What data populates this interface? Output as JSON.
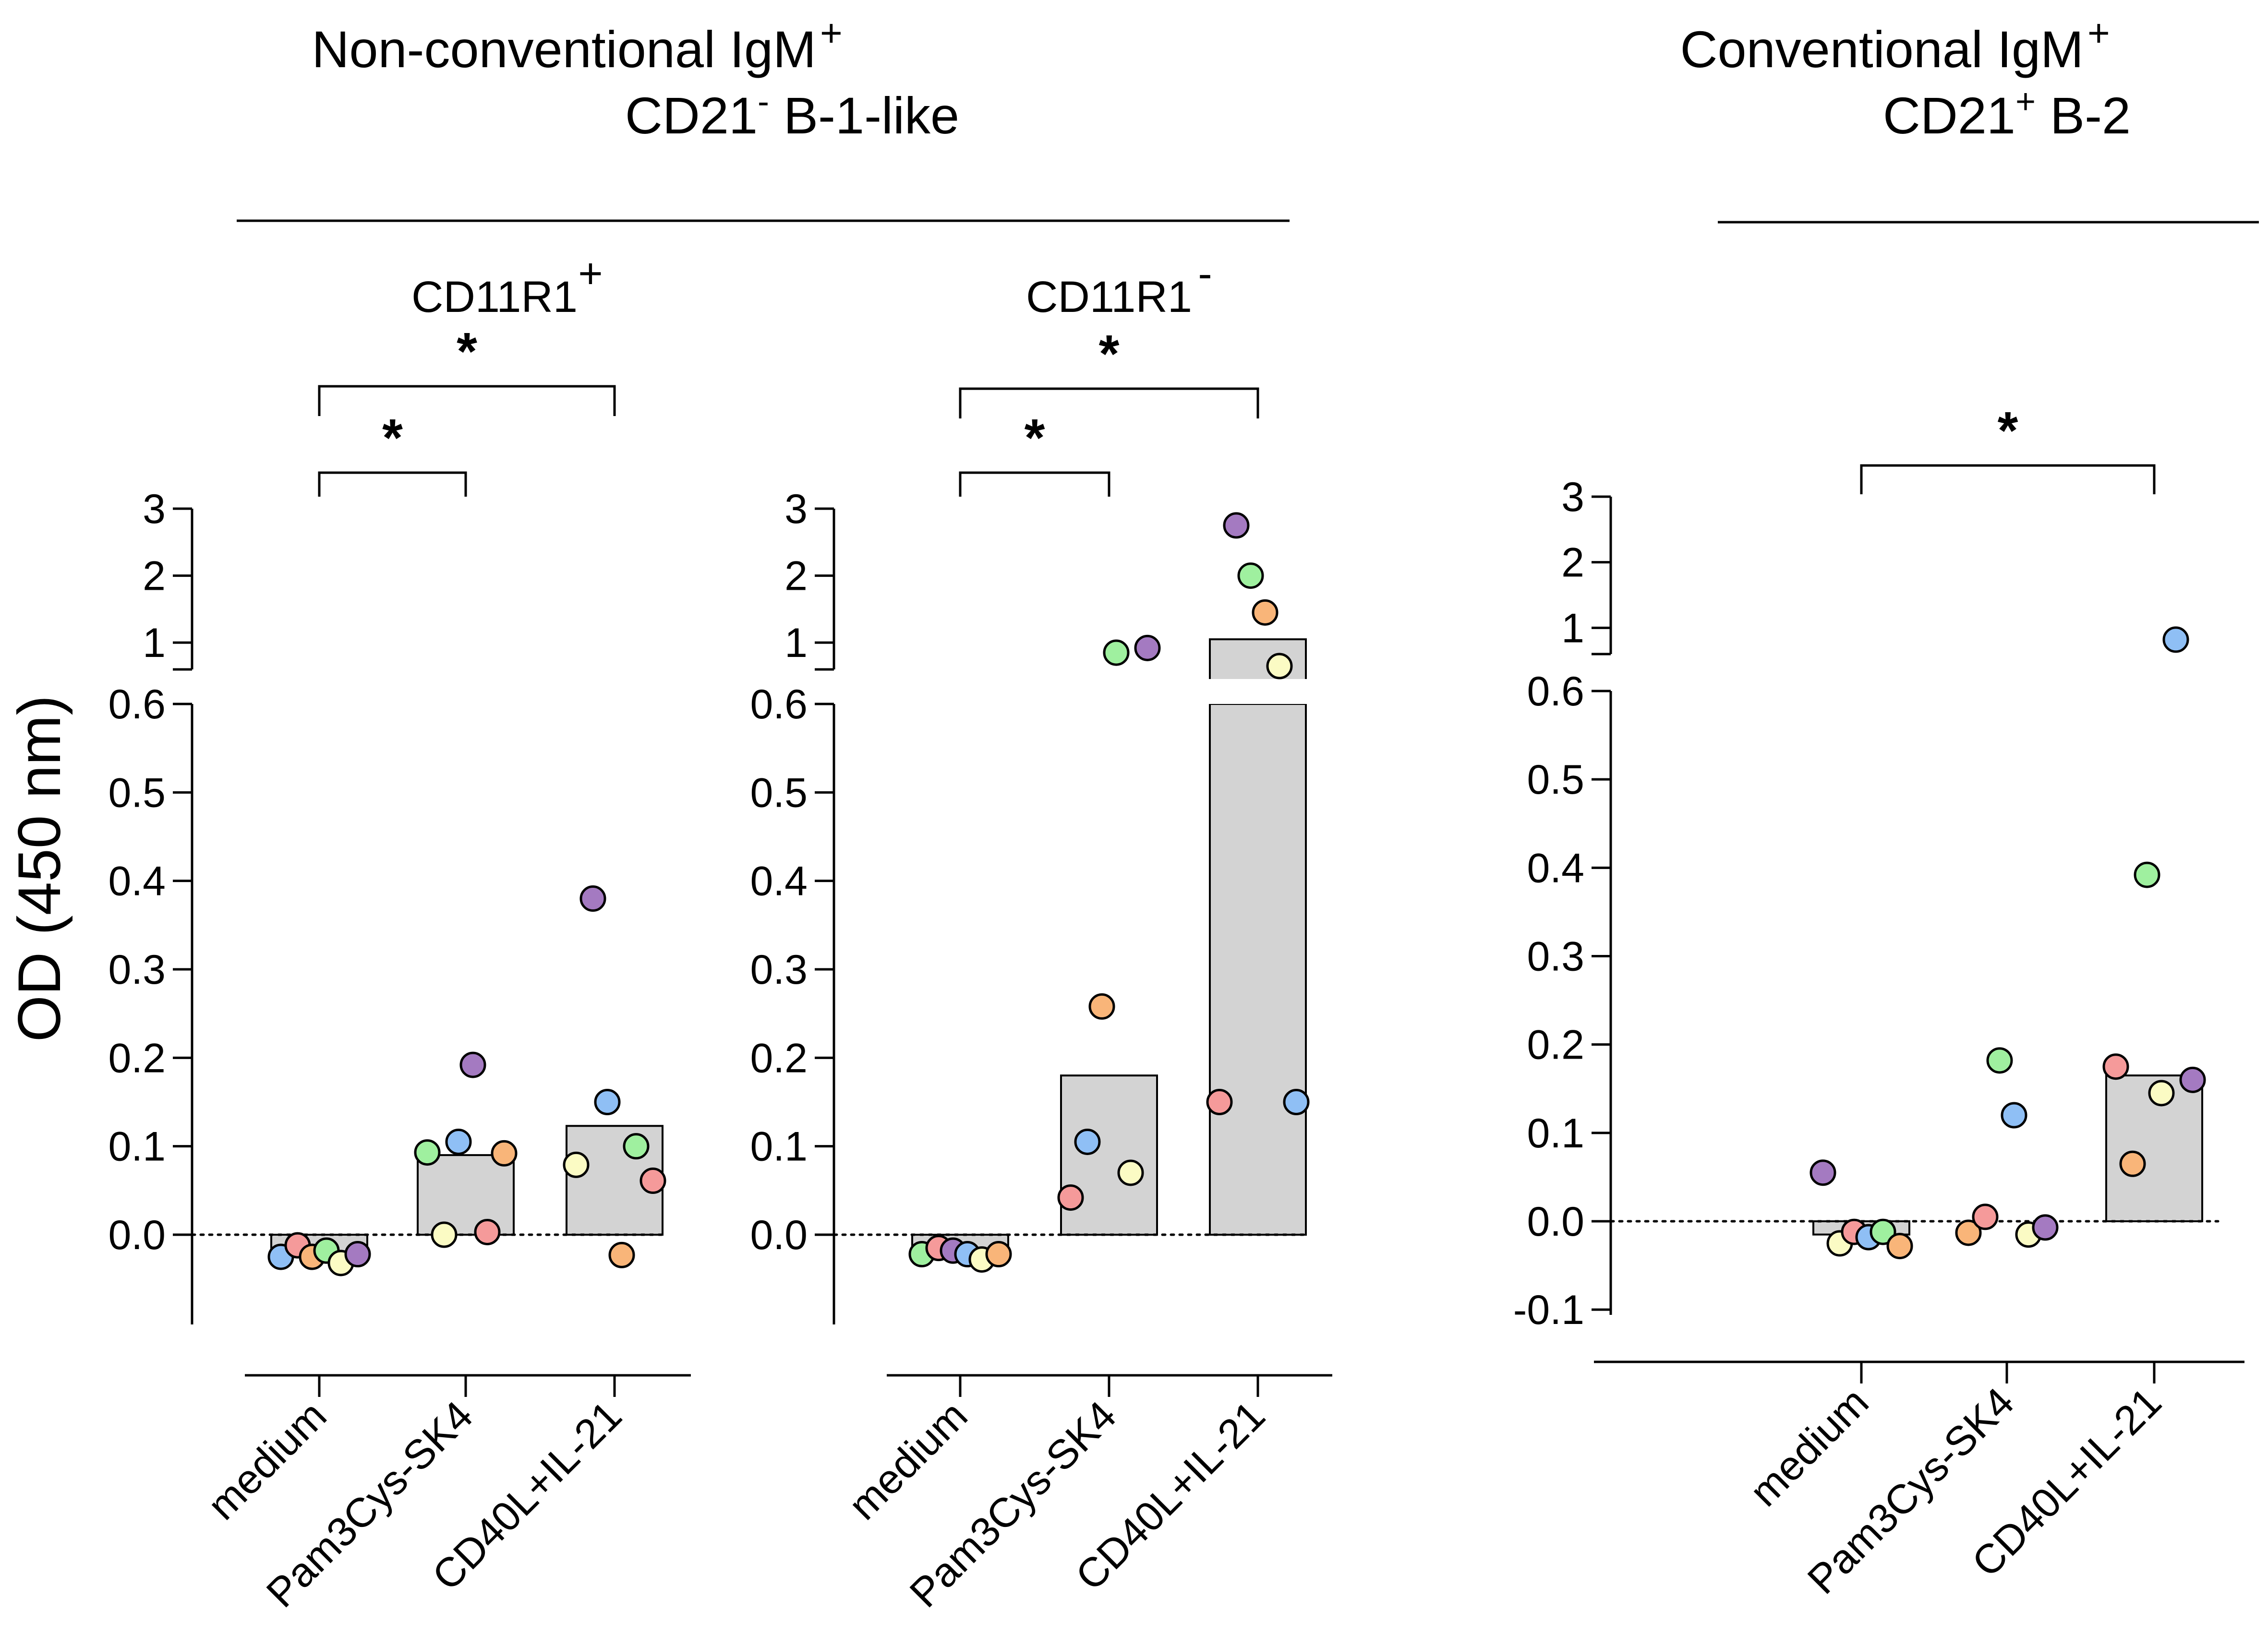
{
  "y_axis_label": "OD (450 nm)",
  "groups": [
    {
      "title_main": "Non-conventional IgM",
      "title_sup": "+",
      "title_line2_pre": "CD21",
      "title_line2_sup": "-",
      "title_line2_post": " B-1-like"
    },
    {
      "title_main": "Conventional IgM",
      "title_sup": "+",
      "title_line2_pre": "CD21",
      "title_line2_sup": "+",
      "title_line2_post": " B-2"
    }
  ],
  "chart_data": [
    {
      "type": "bar",
      "panel_title": "CD11R1",
      "panel_title_sup": "+",
      "categories": [
        "medium",
        "Pam3Cys-SK4",
        "CD40L+IL-21"
      ],
      "means": [
        -0.02,
        0.09,
        0.123
      ],
      "points": [
        [
          {
            "v": -0.025,
            "c": "#8fbff5"
          },
          {
            "v": -0.012,
            "c": "#f59a9a"
          },
          {
            "v": -0.025,
            "c": "#f9b579"
          },
          {
            "v": -0.018,
            "c": "#9ff09f"
          },
          {
            "v": -0.032,
            "c": "#fbfbc4"
          },
          {
            "v": -0.022,
            "c": "#a47ac1"
          }
        ],
        [
          {
            "v": 0.093,
            "c": "#9ff09f"
          },
          {
            "v": 0.0,
            "c": "#fbfbc4"
          },
          {
            "v": 0.105,
            "c": "#8fbff5"
          },
          {
            "v": 0.192,
            "c": "#a47ac1"
          },
          {
            "v": 0.003,
            "c": "#f59a9a"
          },
          {
            "v": 0.092,
            "c": "#f9b579"
          }
        ],
        [
          {
            "v": 0.079,
            "c": "#fbfbc4"
          },
          {
            "v": 0.38,
            "c": "#a47ac1"
          },
          {
            "v": 0.15,
            "c": "#8fbff5"
          },
          {
            "v": -0.023,
            "c": "#f9b579"
          },
          {
            "v": 0.1,
            "c": "#9ff09f"
          },
          {
            "v": 0.061,
            "c": "#f59a9a"
          }
        ]
      ],
      "y_lower_range": [
        -0.1,
        0.6
      ],
      "y_upper_range": [
        0.6,
        3
      ],
      "y_lower_ticks": [
        "0.6",
        "0.5",
        "0.4",
        "0.3",
        "0.2",
        "0.1",
        "0.0"
      ],
      "y_upper_ticks": [
        "3",
        "2",
        "1"
      ],
      "significance": [
        {
          "from": "medium",
          "to": "Pam3Cys-SK4",
          "label": "*"
        },
        {
          "from": "medium",
          "to": "CD40L+IL-21",
          "label": "*"
        }
      ]
    },
    {
      "type": "bar",
      "panel_title": "CD11R1",
      "panel_title_sup": "-",
      "categories": [
        "medium",
        "Pam3Cys-SK4",
        "CD40L+IL-21"
      ],
      "means": [
        -0.02,
        0.18,
        1.05
      ],
      "points": [
        [
          {
            "v": -0.022,
            "c": "#9ff09f"
          },
          {
            "v": -0.015,
            "c": "#f59a9a"
          },
          {
            "v": -0.018,
            "c": "#a47ac1"
          },
          {
            "v": -0.022,
            "c": "#8fbff5"
          },
          {
            "v": -0.028,
            "c": "#fbfbc4"
          },
          {
            "v": -0.022,
            "c": "#f9b579"
          }
        ],
        [
          {
            "v": 0.042,
            "c": "#f59a9a"
          },
          {
            "v": 0.105,
            "c": "#8fbff5"
          },
          {
            "v": 0.258,
            "c": "#f9b579"
          },
          {
            "v": 0.85,
            "c": "#9ff09f"
          },
          {
            "v": 0.07,
            "c": "#fbfbc4"
          },
          {
            "v": 0.92,
            "c": "#a47ac1"
          }
        ],
        [
          {
            "v": 0.15,
            "c": "#f59a9a"
          },
          {
            "v": 2.75,
            "c": "#a47ac1"
          },
          {
            "v": 2.0,
            "c": "#9ff09f"
          },
          {
            "v": 1.45,
            "c": "#f9b579"
          },
          {
            "v": 0.65,
            "c": "#fbfbc4"
          },
          {
            "v": 0.15,
            "c": "#8fbff5"
          }
        ]
      ],
      "y_lower_range": [
        -0.1,
        0.6
      ],
      "y_upper_range": [
        0.6,
        3
      ],
      "y_lower_ticks": [
        "0.6",
        "0.5",
        "0.4",
        "0.3",
        "0.2",
        "0.1",
        "0.0"
      ],
      "y_upper_ticks": [
        "3",
        "2",
        "1"
      ],
      "significance": [
        {
          "from": "medium",
          "to": "Pam3Cys-SK4",
          "label": "*"
        },
        {
          "from": "medium",
          "to": "CD40L+IL-21",
          "label": "*"
        }
      ]
    },
    {
      "type": "bar",
      "panel_title": "",
      "panel_title_sup": "",
      "categories": [
        "medium",
        "Pam3Cys-SK4",
        "CD40L+IL-21"
      ],
      "means": [
        -0.015,
        0.0,
        0.165
      ],
      "points": [
        [
          {
            "v": 0.055,
            "c": "#a47ac1"
          },
          {
            "v": -0.025,
            "c": "#fbfbc4"
          },
          {
            "v": -0.012,
            "c": "#f59a9a"
          },
          {
            "v": -0.018,
            "c": "#8fbff5"
          },
          {
            "v": -0.012,
            "c": "#9ff09f"
          },
          {
            "v": -0.028,
            "c": "#f9b579"
          }
        ],
        [
          {
            "v": -0.013,
            "c": "#f9b579"
          },
          {
            "v": 0.005,
            "c": "#f59a9a"
          },
          {
            "v": 0.182,
            "c": "#9ff09f"
          },
          {
            "v": 0.12,
            "c": "#8fbff5"
          },
          {
            "v": -0.015,
            "c": "#fbfbc4"
          },
          {
            "v": -0.007,
            "c": "#a47ac1"
          }
        ],
        [
          {
            "v": 0.175,
            "c": "#f59a9a"
          },
          {
            "v": 0.065,
            "c": "#f9b579"
          },
          {
            "v": 0.392,
            "c": "#9ff09f"
          },
          {
            "v": 0.145,
            "c": "#fbfbc4"
          },
          {
            "v": 0.82,
            "c": "#8fbff5"
          },
          {
            "v": 0.16,
            "c": "#a47ac1"
          }
        ]
      ],
      "y_lower_range": [
        -0.1,
        0.6
      ],
      "y_upper_range": [
        0.6,
        3
      ],
      "y_lower_ticks": [
        "0.6",
        "0.5",
        "0.4",
        "0.3",
        "0.2",
        "0.1",
        "0.0",
        "-0.1"
      ],
      "y_upper_ticks": [
        "3",
        "2",
        "1"
      ],
      "significance": [
        {
          "from": "medium",
          "to": "CD40L+IL-21",
          "label": "*"
        }
      ]
    }
  ]
}
